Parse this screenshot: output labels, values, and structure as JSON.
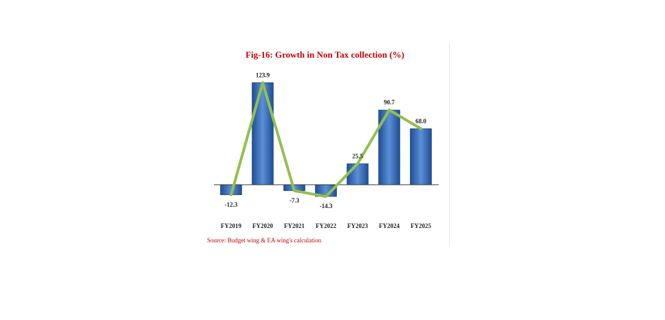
{
  "chart_data": {
    "type": "bar",
    "title": "Fig-16: Growth in Non Tax collection (%)",
    "source": "Source: Budget wing & EA wing's calculation",
    "categories": [
      "FY2019",
      "FY2020",
      "FY2021",
      "FY2022",
      "FY2023",
      "FY2024",
      "FY2025"
    ],
    "series": [
      {
        "values": [
          -12.3,
          123.9,
          -7.3,
          -14.3,
          25.5,
          90.7,
          68.0
        ],
        "labels": [
          "-12.3",
          "123.9",
          "-7.3",
          "-14.3",
          "25.5",
          "90.7",
          "68.0"
        ],
        "kind": "bar",
        "color": "#4a7cc8"
      },
      {
        "values": [
          -12.3,
          123.9,
          -7.3,
          -14.3,
          25.5,
          90.7,
          68.0
        ],
        "kind": "line",
        "color": "#92c050"
      }
    ],
    "ylim": [
      -20,
      130
    ],
    "grid": false,
    "legend": "none"
  }
}
